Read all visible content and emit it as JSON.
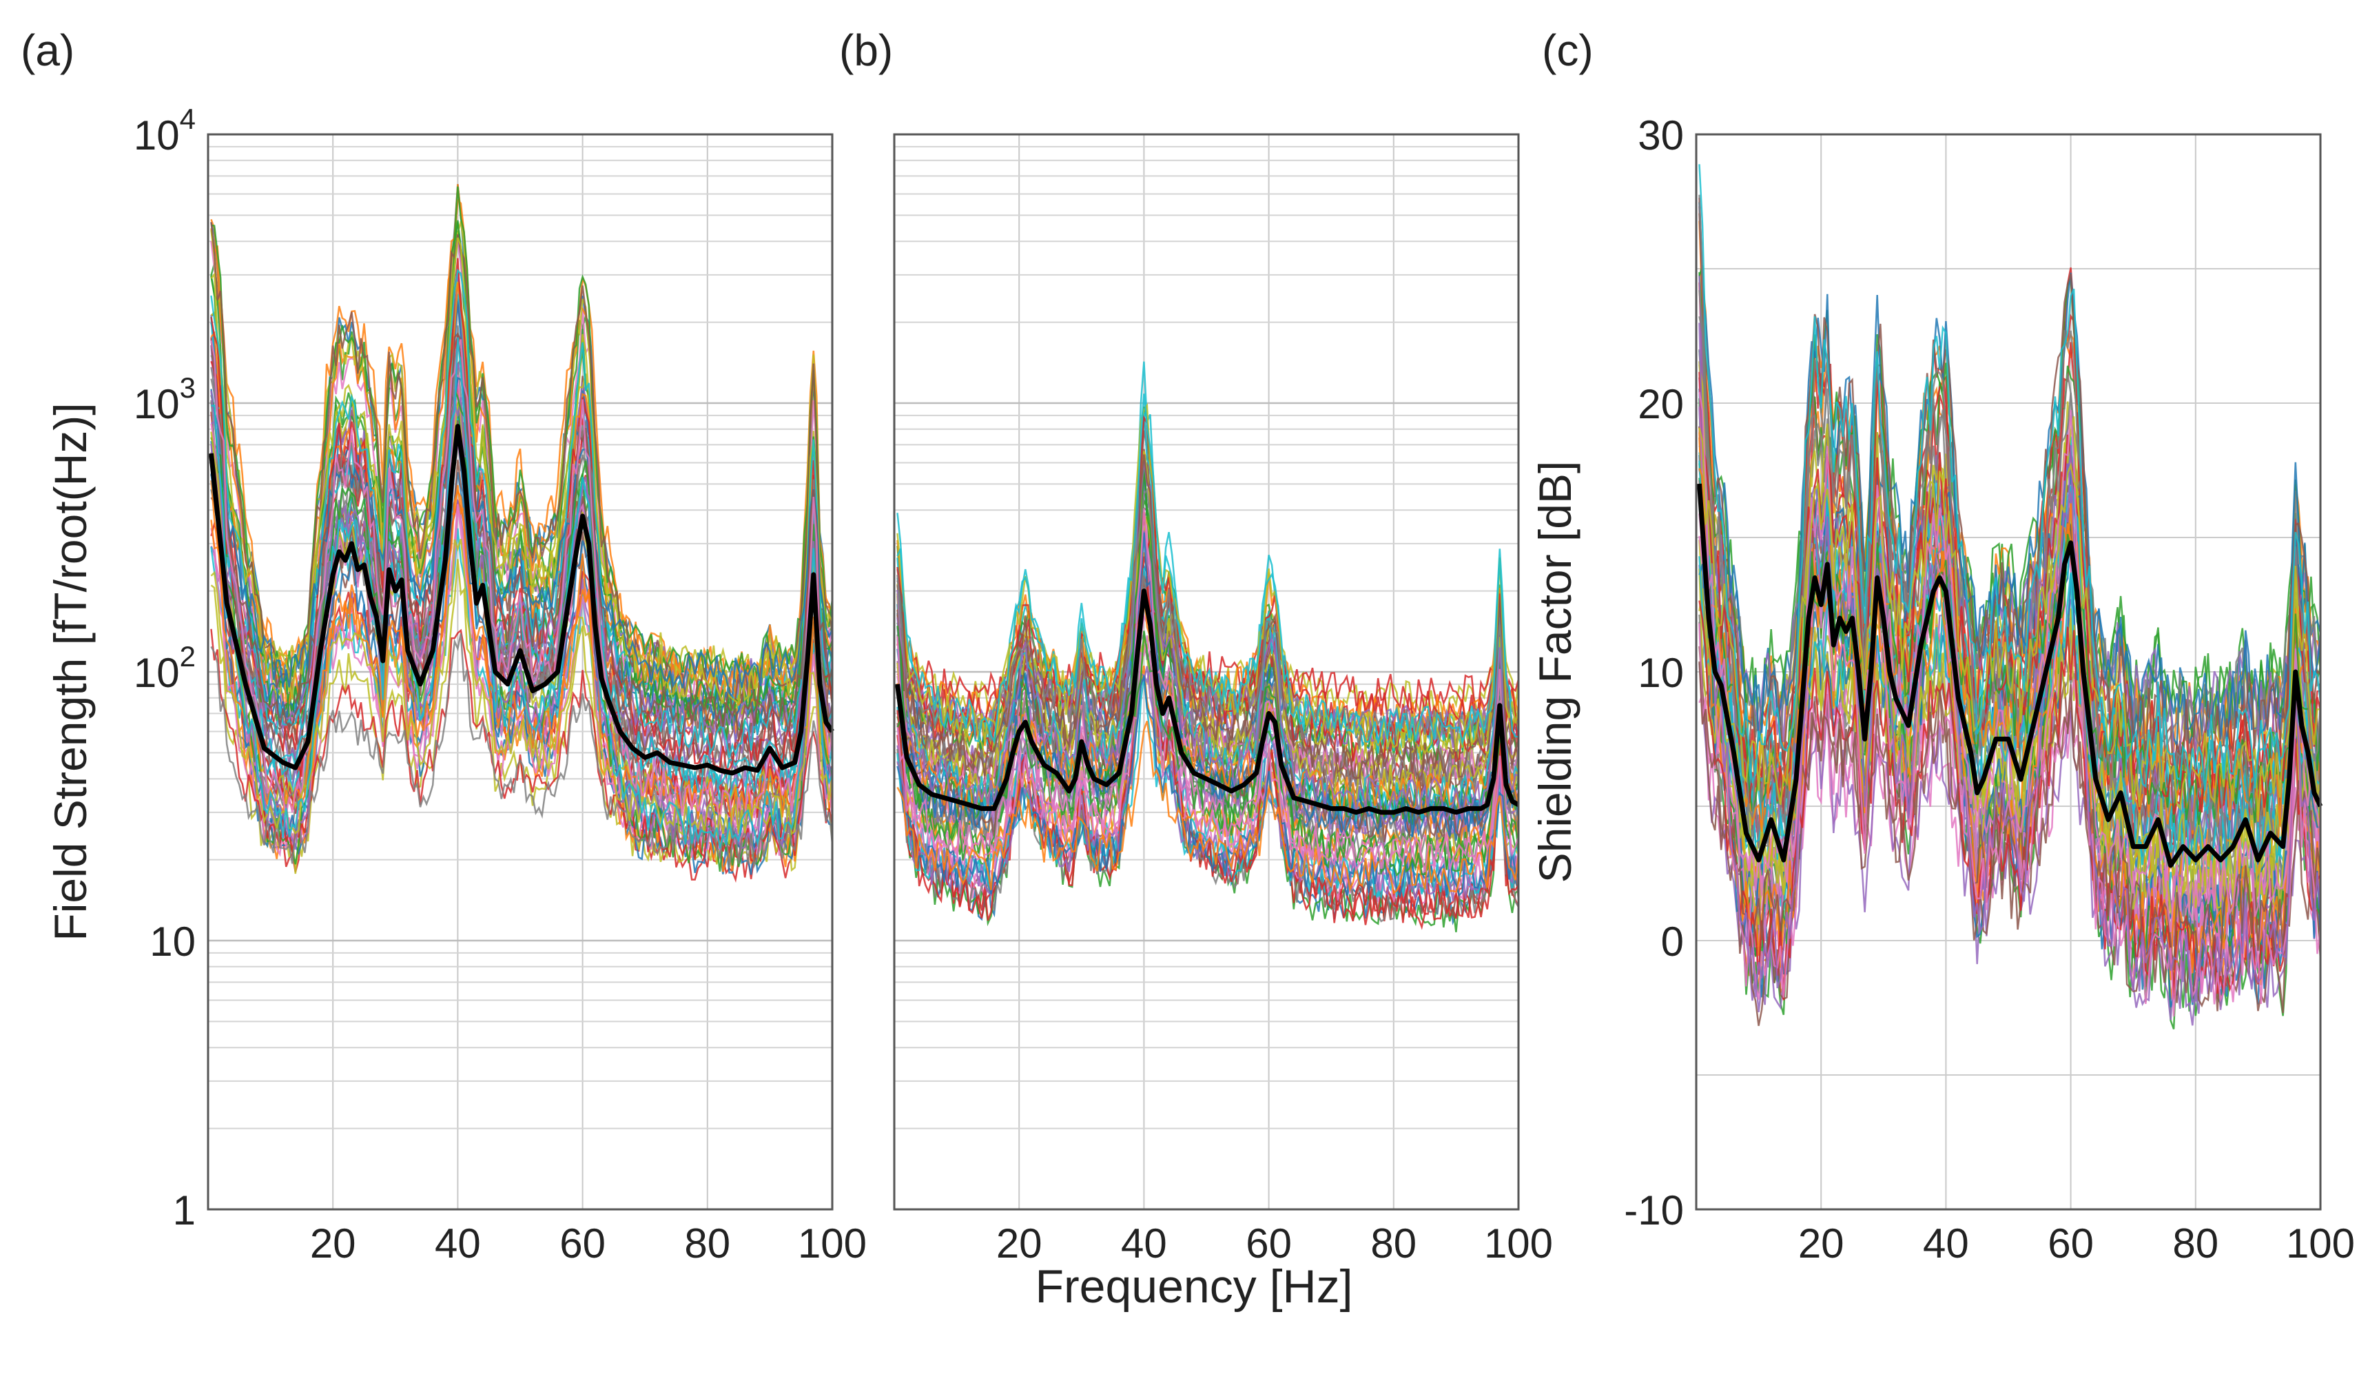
{
  "figure": {
    "shared_xlabel": "Frequency [Hz]"
  },
  "chart_data": [
    {
      "type": "line",
      "panel_label": "(a)",
      "title": "",
      "xlabel": "",
      "ylabel": "Field Strength [fT/root(Hz)]",
      "yscale": "log",
      "xlim": [
        0,
        100
      ],
      "ylim": [
        1,
        10000
      ],
      "grid": true,
      "x_ticks": [
        20,
        40,
        60,
        80,
        100
      ],
      "x_tick_labels": [
        "20",
        "40",
        "60",
        "80",
        "100"
      ],
      "y_ticks": [
        1,
        10,
        100,
        1000,
        10000
      ],
      "y_tick_labels": [
        {
          "base": "1",
          "exp": ""
        },
        {
          "base": "10",
          "exp": ""
        },
        {
          "base": "10",
          "exp": "2"
        },
        {
          "base": "10",
          "exp": "3"
        },
        {
          "base": "10",
          "exp": "4"
        }
      ],
      "trace_count": 60,
      "mean_line": {
        "color": "#000000",
        "x": [
          0.5,
          3,
          6,
          9,
          12,
          14,
          16,
          18,
          20,
          21,
          22,
          23,
          24,
          25,
          26,
          27,
          28,
          29,
          30,
          31,
          32,
          34,
          36,
          38,
          39,
          40,
          41,
          42,
          43,
          44,
          46,
          48,
          50,
          52,
          54,
          56,
          58,
          59,
          60,
          61,
          62,
          63,
          64,
          66,
          68,
          70,
          72,
          74,
          76,
          78,
          80,
          82,
          84,
          86,
          88,
          90,
          92,
          94,
          95,
          96,
          97,
          98,
          99,
          100
        ],
        "y": [
          650,
          180,
          90,
          52,
          46,
          44,
          55,
          120,
          230,
          280,
          260,
          300,
          240,
          250,
          190,
          160,
          110,
          240,
          200,
          220,
          120,
          90,
          120,
          260,
          500,
          820,
          560,
          300,
          180,
          210,
          100,
          90,
          120,
          85,
          90,
          100,
          200,
          280,
          380,
          300,
          150,
          95,
          80,
          60,
          52,
          48,
          50,
          46,
          45,
          44,
          45,
          43,
          42,
          44,
          43,
          52,
          44,
          46,
          60,
          110,
          230,
          90,
          65,
          60
        ]
      },
      "series_envelope": {
        "note": "approx. 60 coloured individual spectra spread around the mean line",
        "low_factor": 0.45,
        "high_factor": 2.5
      }
    },
    {
      "type": "line",
      "panel_label": "(b)",
      "title": "",
      "xlabel": "Frequency [Hz]",
      "ylabel": "",
      "yscale": "log",
      "xlim": [
        0,
        100
      ],
      "ylim": [
        1,
        10000
      ],
      "grid": true,
      "x_ticks": [
        20,
        40,
        60,
        80,
        100
      ],
      "x_tick_labels": [
        "20",
        "40",
        "60",
        "80",
        "100"
      ],
      "trace_count": 60,
      "mean_line": {
        "color": "#000000",
        "x": [
          0.5,
          2,
          4,
          6,
          8,
          10,
          12,
          14,
          16,
          18,
          19,
          20,
          21,
          22,
          24,
          26,
          28,
          29,
          30,
          31,
          32,
          34,
          36,
          38,
          39,
          40,
          41,
          42,
          43,
          44,
          46,
          48,
          50,
          52,
          54,
          56,
          58,
          59,
          60,
          61,
          62,
          64,
          66,
          68,
          70,
          72,
          74,
          76,
          78,
          80,
          82,
          84,
          86,
          88,
          90,
          92,
          94,
          95,
          96,
          97,
          98,
          99,
          100
        ],
        "y": [
          90,
          48,
          38,
          35,
          34,
          33,
          32,
          31,
          31,
          40,
          50,
          60,
          65,
          55,
          45,
          42,
          36,
          40,
          55,
          45,
          40,
          38,
          42,
          70,
          120,
          200,
          150,
          90,
          70,
          80,
          50,
          42,
          40,
          38,
          36,
          38,
          42,
          55,
          70,
          65,
          45,
          34,
          33,
          32,
          31,
          31,
          30,
          31,
          30,
          30,
          31,
          30,
          31,
          31,
          30,
          31,
          31,
          32,
          40,
          75,
          38,
          33,
          32
        ]
      },
      "series_envelope": {
        "note": "approx. 60 coloured individual spectra spread around the mean line",
        "low_factor": 0.5,
        "high_factor": 2.6
      }
    },
    {
      "type": "line",
      "panel_label": "(c)",
      "title": "",
      "xlabel": "",
      "ylabel": "Shielding Factor [dB]",
      "yscale": "linear",
      "xlim": [
        0,
        100
      ],
      "ylim": [
        -10,
        30
      ],
      "grid": true,
      "x_ticks": [
        20,
        40,
        60,
        80,
        100
      ],
      "x_tick_labels": [
        "20",
        "40",
        "60",
        "80",
        "100"
      ],
      "y_ticks": [
        -10,
        0,
        10,
        20,
        30
      ],
      "y_tick_labels": [
        "-10",
        "0",
        "10",
        "20",
        "30"
      ],
      "trace_count": 60,
      "mean_line": {
        "color": "#000000",
        "x": [
          0.5,
          2,
          3,
          4,
          6,
          8,
          10,
          12,
          14,
          16,
          18,
          19,
          20,
          21,
          22,
          23,
          24,
          25,
          26,
          27,
          28,
          29,
          30,
          31,
          32,
          34,
          36,
          38,
          39,
          40,
          41,
          42,
          43,
          44,
          45,
          46,
          48,
          50,
          52,
          54,
          56,
          58,
          59,
          60,
          61,
          62,
          63,
          64,
          66,
          68,
          70,
          72,
          74,
          76,
          78,
          80,
          82,
          84,
          86,
          88,
          90,
          92,
          94,
          95,
          96,
          97,
          98,
          99,
          100
        ],
        "y": [
          17,
          12,
          10,
          9.5,
          7,
          4,
          3,
          4.5,
          3,
          6,
          12,
          13.5,
          12.5,
          14,
          11,
          12,
          11.5,
          12,
          10,
          7.5,
          10,
          13.5,
          12,
          10,
          9,
          8,
          11,
          13,
          13.5,
          13,
          11,
          9,
          8,
          7,
          5.5,
          6,
          7.5,
          7.5,
          6,
          8,
          10,
          12,
          14,
          14.8,
          13,
          10,
          8,
          6,
          4.5,
          5.5,
          3.5,
          3.5,
          4.5,
          2.8,
          3.5,
          3,
          3.5,
          3,
          3.5,
          4.5,
          3,
          4,
          3.5,
          6,
          10,
          8,
          7,
          5.5,
          5
        ]
      },
      "series_envelope": {
        "note": "approx. 60 coloured individual spectra spread around the mean line",
        "low_offset": -5,
        "high_offset": 6
      }
    }
  ]
}
